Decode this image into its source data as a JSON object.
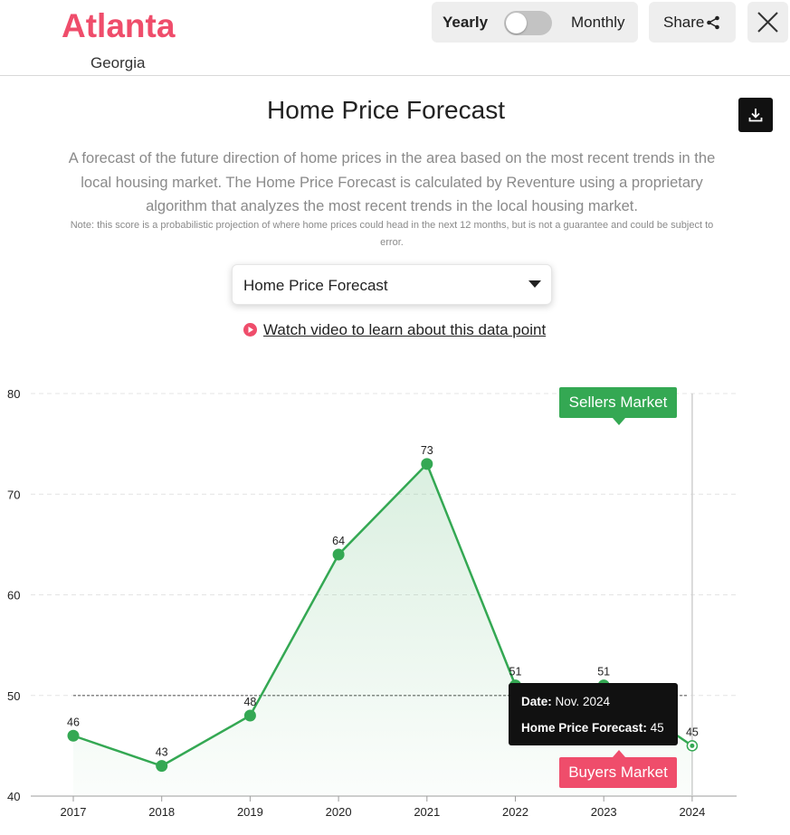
{
  "header": {
    "city": "Atlanta",
    "state": "Georgia",
    "toggle_left": "Yearly",
    "toggle_right": "Monthly",
    "share_label": "Share"
  },
  "main": {
    "title": "Home Price Forecast",
    "description": "A forecast of the future direction of home prices in the area based on the most recent trends in the local housing market. The Home Price Forecast is calculated by Reventure using a proprietary algorithm that analyzes the most recent trends in the local housing market.",
    "note": "Note: this score is a probabilistic projection of where home prices could head in the next 12 months, but is not a guarantee and could be subject to error.",
    "select_value": "Home Price Forecast",
    "video_link": "Watch video to learn about this data point"
  },
  "chart_data": {
    "type": "area",
    "categories": [
      "2017",
      "2018",
      "2019",
      "2020",
      "2021",
      "2022",
      "2023",
      "2024"
    ],
    "values": [
      46,
      43,
      48,
      64,
      73,
      51,
      51,
      45
    ],
    "yticks": [
      40,
      50,
      60,
      70,
      80
    ],
    "ylim": [
      40,
      80
    ],
    "reference_line": 50,
    "grid": true,
    "color": "#34a853",
    "callouts": {
      "top": "Sellers Market",
      "bottom": "Buyers Market"
    },
    "tooltip": {
      "date_label": "Date",
      "date_value": "Nov. 2024",
      "value_label": "Home Price Forecast",
      "value": "45"
    }
  },
  "colors": {
    "brand": "#ef4d6b",
    "sellers": "#34a853",
    "buyers": "#ef4d6b"
  }
}
